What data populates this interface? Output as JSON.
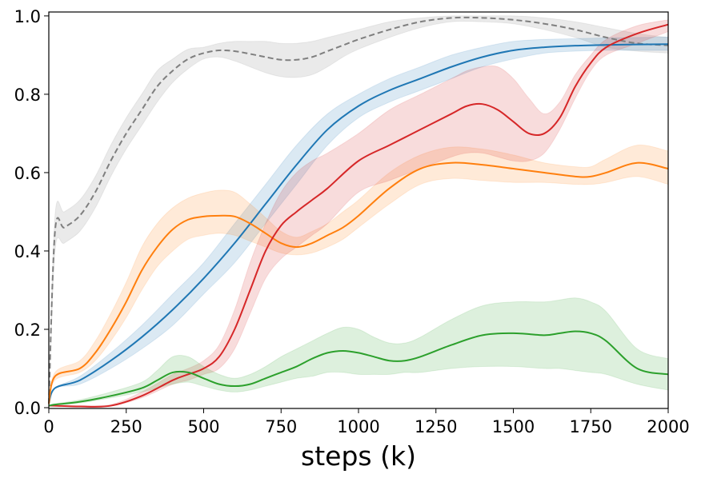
{
  "chart_data": {
    "type": "line",
    "title": "",
    "xlabel": "steps (k)",
    "ylabel": "",
    "xlim": [
      0,
      2000
    ],
    "ylim": [
      0,
      1.0
    ],
    "x_ticks": [
      0,
      250,
      500,
      750,
      1000,
      1250,
      1500,
      1750,
      2000
    ],
    "x_tick_labels": [
      "0",
      "250",
      "500",
      "750",
      "1000",
      "1250",
      "1500",
      "1750",
      "2000"
    ],
    "y_ticks": [
      0.0,
      0.2,
      0.4,
      0.6,
      0.8,
      1.0
    ],
    "y_tick_labels": [
      "0.0",
      "0.2",
      "0.4",
      "0.6",
      "0.8",
      "1.0"
    ],
    "grid": false,
    "series": [
      {
        "name": "gray-dashed",
        "color": "#7f7f7f",
        "dashed": true,
        "x": [
          0,
          20,
          50,
          100,
          150,
          200,
          250,
          300,
          350,
          400,
          450,
          500,
          550,
          600,
          650,
          700,
          750,
          800,
          850,
          900,
          950,
          1000,
          1100,
          1200,
          1300,
          1400,
          1500,
          1600,
          1700,
          1800,
          1900,
          2000
        ],
        "y": [
          0.01,
          0.45,
          0.46,
          0.49,
          0.55,
          0.63,
          0.7,
          0.76,
          0.82,
          0.86,
          0.89,
          0.905,
          0.912,
          0.91,
          0.903,
          0.895,
          0.888,
          0.888,
          0.895,
          0.91,
          0.925,
          0.94,
          0.965,
          0.985,
          0.995,
          0.995,
          0.99,
          0.98,
          0.965,
          0.945,
          0.93,
          0.925
        ],
        "lower": [
          0.01,
          0.4,
          0.42,
          0.45,
          0.51,
          0.59,
          0.66,
          0.72,
          0.78,
          0.83,
          0.865,
          0.89,
          0.895,
          0.885,
          0.87,
          0.855,
          0.845,
          0.843,
          0.85,
          0.87,
          0.895,
          0.915,
          0.945,
          0.97,
          0.985,
          0.985,
          0.98,
          0.965,
          0.945,
          0.92,
          0.91,
          0.905
        ],
        "upper": [
          0.01,
          0.49,
          0.5,
          0.53,
          0.59,
          0.67,
          0.74,
          0.8,
          0.86,
          0.89,
          0.915,
          0.92,
          0.93,
          0.935,
          0.935,
          0.935,
          0.93,
          0.93,
          0.935,
          0.945,
          0.955,
          0.965,
          0.985,
          0.995,
          1.0,
          1.0,
          1.0,
          0.995,
          0.985,
          0.97,
          0.955,
          0.945
        ]
      },
      {
        "name": "blue",
        "color": "#1f77b4",
        "dashed": false,
        "x": [
          0,
          20,
          100,
          200,
          300,
          400,
          500,
          600,
          700,
          800,
          900,
          1000,
          1100,
          1200,
          1300,
          1400,
          1500,
          1600,
          1700,
          1800,
          1900,
          2000
        ],
        "y": [
          0.01,
          0.05,
          0.07,
          0.12,
          0.18,
          0.25,
          0.33,
          0.42,
          0.52,
          0.62,
          0.71,
          0.77,
          0.81,
          0.84,
          0.87,
          0.895,
          0.912,
          0.92,
          0.924,
          0.926,
          0.927,
          0.928
        ],
        "lower": [
          0.01,
          0.05,
          0.06,
          0.1,
          0.15,
          0.21,
          0.29,
          0.37,
          0.47,
          0.57,
          0.67,
          0.74,
          0.78,
          0.81,
          0.84,
          0.87,
          0.89,
          0.905,
          0.91,
          0.912,
          0.912,
          0.912
        ],
        "upper": [
          0.01,
          0.05,
          0.08,
          0.14,
          0.21,
          0.29,
          0.37,
          0.47,
          0.57,
          0.67,
          0.75,
          0.8,
          0.84,
          0.87,
          0.9,
          0.92,
          0.935,
          0.94,
          0.942,
          0.944,
          0.945,
          0.946
        ]
      },
      {
        "name": "orange",
        "color": "#ff7f0e",
        "dashed": false,
        "x": [
          0,
          20,
          100,
          150,
          200,
          250,
          300,
          350,
          400,
          450,
          500,
          550,
          600,
          650,
          700,
          750,
          800,
          850,
          900,
          950,
          1000,
          1100,
          1200,
          1300,
          1400,
          1500,
          1600,
          1700,
          1750,
          1800,
          1900,
          2000
        ],
        "y": [
          0.01,
          0.08,
          0.1,
          0.14,
          0.2,
          0.27,
          0.35,
          0.41,
          0.455,
          0.48,
          0.488,
          0.49,
          0.488,
          0.47,
          0.445,
          0.42,
          0.41,
          0.42,
          0.44,
          0.46,
          0.49,
          0.56,
          0.61,
          0.625,
          0.62,
          0.61,
          0.6,
          0.59,
          0.59,
          0.6,
          0.625,
          0.61
        ],
        "lower": [
          0.01,
          0.07,
          0.09,
          0.12,
          0.17,
          0.23,
          0.3,
          0.36,
          0.4,
          0.43,
          0.44,
          0.445,
          0.44,
          0.425,
          0.41,
          0.395,
          0.39,
          0.395,
          0.41,
          0.43,
          0.46,
          0.52,
          0.57,
          0.585,
          0.58,
          0.575,
          0.575,
          0.57,
          0.57,
          0.575,
          0.59,
          0.57
        ],
        "upper": [
          0.01,
          0.09,
          0.12,
          0.17,
          0.24,
          0.32,
          0.41,
          0.47,
          0.51,
          0.535,
          0.548,
          0.555,
          0.55,
          0.52,
          0.485,
          0.45,
          0.435,
          0.45,
          0.47,
          0.5,
          0.53,
          0.6,
          0.645,
          0.665,
          0.66,
          0.645,
          0.625,
          0.615,
          0.615,
          0.635,
          0.67,
          0.655
        ]
      },
      {
        "name": "red",
        "color": "#d62728",
        "dashed": false,
        "x": [
          0,
          20,
          100,
          200,
          300,
          400,
          450,
          500,
          550,
          600,
          650,
          700,
          750,
          800,
          850,
          900,
          1000,
          1100,
          1200,
          1300,
          1350,
          1400,
          1450,
          1500,
          1550,
          1600,
          1650,
          1700,
          1750,
          1800,
          1900,
          2000
        ],
        "y": [
          0.005,
          0.005,
          0.003,
          0.005,
          0.03,
          0.07,
          0.085,
          0.1,
          0.13,
          0.2,
          0.3,
          0.4,
          0.465,
          0.5,
          0.53,
          0.56,
          0.63,
          0.67,
          0.71,
          0.75,
          0.77,
          0.775,
          0.76,
          0.73,
          0.7,
          0.7,
          0.74,
          0.82,
          0.88,
          0.92,
          0.955,
          0.978
        ],
        "lower": [
          0.005,
          0.005,
          0.002,
          0.004,
          0.025,
          0.06,
          0.07,
          0.085,
          0.1,
          0.15,
          0.24,
          0.33,
          0.38,
          0.41,
          0.44,
          0.47,
          0.55,
          0.58,
          0.61,
          0.64,
          0.65,
          0.65,
          0.64,
          0.63,
          0.63,
          0.65,
          0.71,
          0.79,
          0.86,
          0.9,
          0.93,
          0.96
        ],
        "upper": [
          0.005,
          0.006,
          0.005,
          0.008,
          0.04,
          0.085,
          0.1,
          0.12,
          0.16,
          0.25,
          0.37,
          0.47,
          0.55,
          0.6,
          0.63,
          0.65,
          0.7,
          0.76,
          0.8,
          0.84,
          0.86,
          0.87,
          0.87,
          0.84,
          0.79,
          0.75,
          0.78,
          0.85,
          0.9,
          0.94,
          0.975,
          0.99
        ]
      },
      {
        "name": "green",
        "color": "#2ca02c",
        "dashed": false,
        "x": [
          0,
          20,
          100,
          200,
          300,
          350,
          400,
          450,
          500,
          550,
          600,
          650,
          700,
          750,
          800,
          850,
          900,
          950,
          1000,
          1050,
          1100,
          1150,
          1200,
          1300,
          1400,
          1500,
          1600,
          1650,
          1700,
          1750,
          1800,
          1900,
          2000
        ],
        "y": [
          0.005,
          0.008,
          0.015,
          0.03,
          0.05,
          0.07,
          0.09,
          0.09,
          0.075,
          0.06,
          0.055,
          0.06,
          0.075,
          0.09,
          0.105,
          0.125,
          0.14,
          0.145,
          0.14,
          0.13,
          0.12,
          0.12,
          0.13,
          0.16,
          0.185,
          0.19,
          0.185,
          0.19,
          0.195,
          0.19,
          0.17,
          0.1,
          0.085
        ],
        "lower": [
          0.005,
          0.006,
          0.012,
          0.025,
          0.04,
          0.05,
          0.06,
          0.065,
          0.055,
          0.045,
          0.04,
          0.045,
          0.055,
          0.065,
          0.075,
          0.08,
          0.09,
          0.09,
          0.085,
          0.085,
          0.085,
          0.09,
          0.09,
          0.1,
          0.105,
          0.105,
          0.1,
          0.1,
          0.095,
          0.09,
          0.085,
          0.06,
          0.045
        ],
        "upper": [
          0.005,
          0.01,
          0.02,
          0.04,
          0.065,
          0.095,
          0.13,
          0.13,
          0.105,
          0.085,
          0.075,
          0.085,
          0.105,
          0.13,
          0.15,
          0.17,
          0.19,
          0.205,
          0.2,
          0.18,
          0.165,
          0.165,
          0.18,
          0.225,
          0.26,
          0.27,
          0.27,
          0.275,
          0.28,
          0.27,
          0.245,
          0.15,
          0.125
        ]
      }
    ]
  }
}
